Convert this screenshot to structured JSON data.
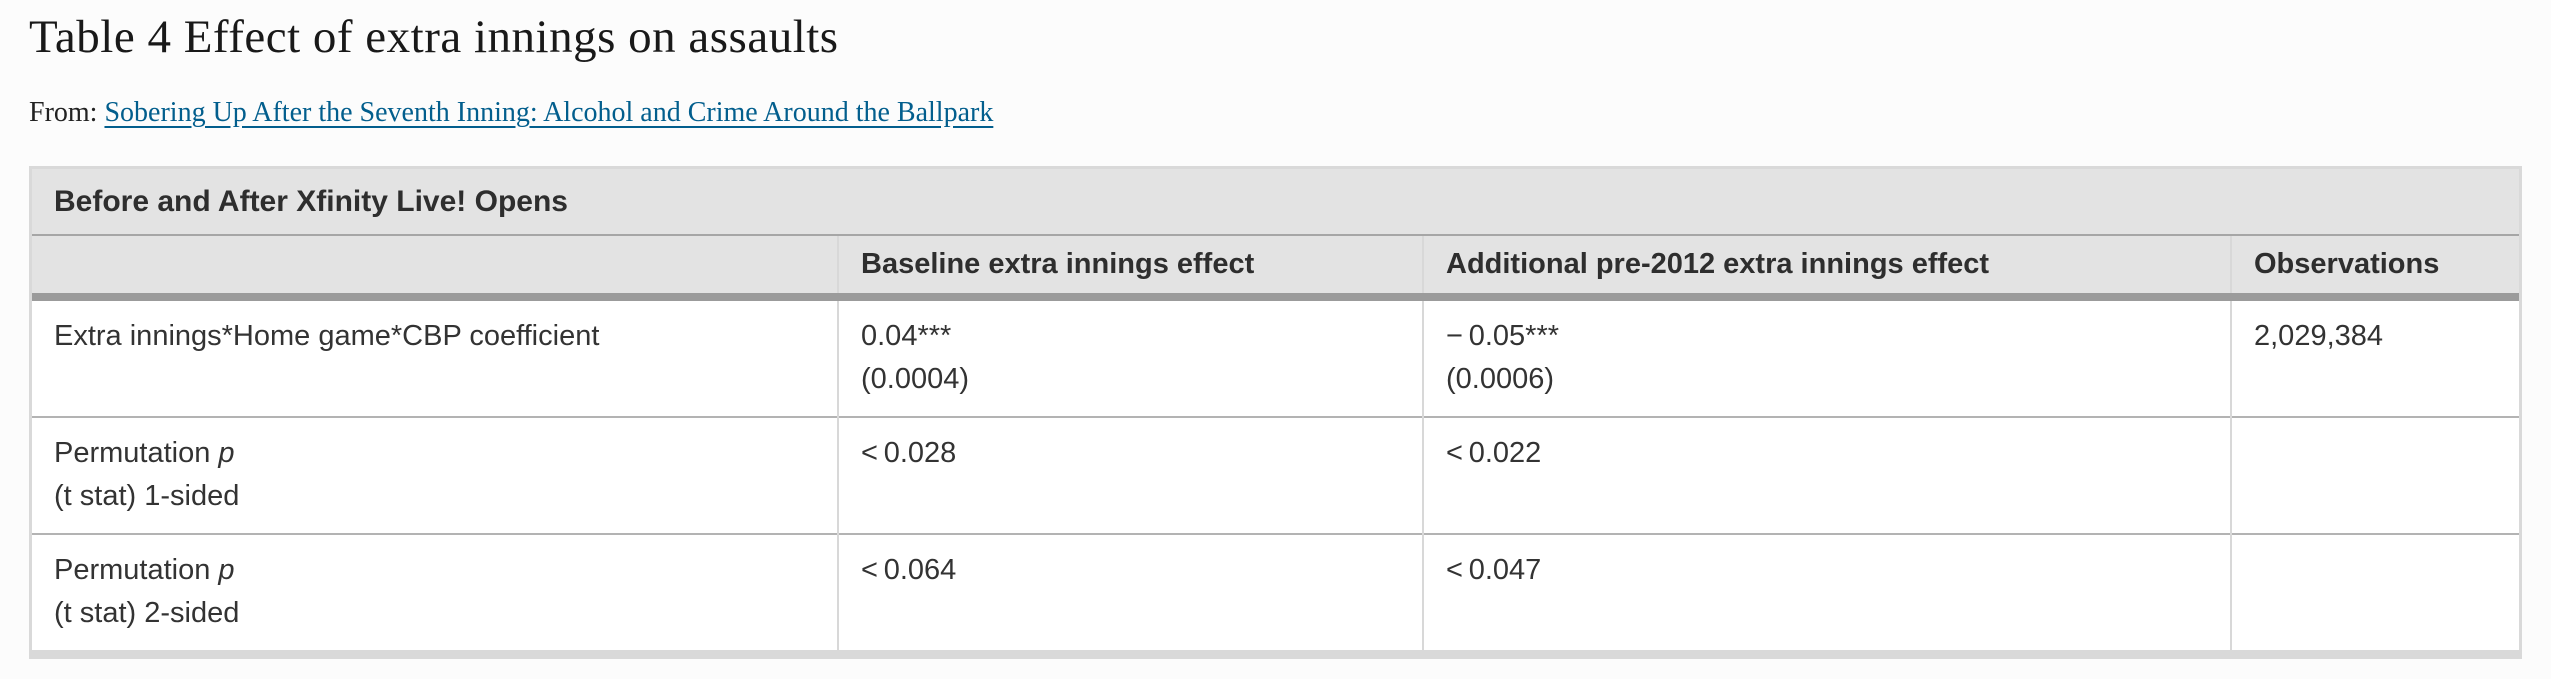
{
  "page": {
    "title": "Table 4 Effect of extra innings on assaults",
    "from_label": "From:",
    "source_link_text": "Sobering Up After the Seventh Inning: Alcohol and Crime Around the Ballpark"
  },
  "colors": {
    "link_blue": "#025e8d",
    "header_band_gray": "#e3e3e3",
    "thick_rule_gray": "#9b9b9b",
    "body_text": "#333333"
  },
  "table": {
    "group_header": "Before and After Xfinity Live! Opens",
    "columns": {
      "c1": "",
      "c2": "Baseline extra innings effect",
      "c3": "Additional pre-2012 extra innings effect",
      "c4": "Observations"
    },
    "rows": [
      {
        "label_prefix": "Extra innings*Home game*CBP coefficient",
        "label_italic": "",
        "label_line2": "",
        "baseline_line1": "0.04***",
        "baseline_line2": "(0.0004)",
        "additional_line1": "− 0.05***",
        "additional_line2": "(0.0006)",
        "observations": "2,029,384"
      },
      {
        "label_prefix": "Permutation ",
        "label_italic": "p",
        "label_line2": "(t stat) 1-sided",
        "baseline_line1": "< 0.028",
        "baseline_line2": "",
        "additional_line1": "< 0.022",
        "additional_line2": "",
        "observations": ""
      },
      {
        "label_prefix": "Permutation ",
        "label_italic": "p",
        "label_line2": "(t stat) 2-sided",
        "baseline_line1": "< 0.064",
        "baseline_line2": "",
        "additional_line1": "< 0.047",
        "additional_line2": "",
        "observations": ""
      }
    ]
  }
}
